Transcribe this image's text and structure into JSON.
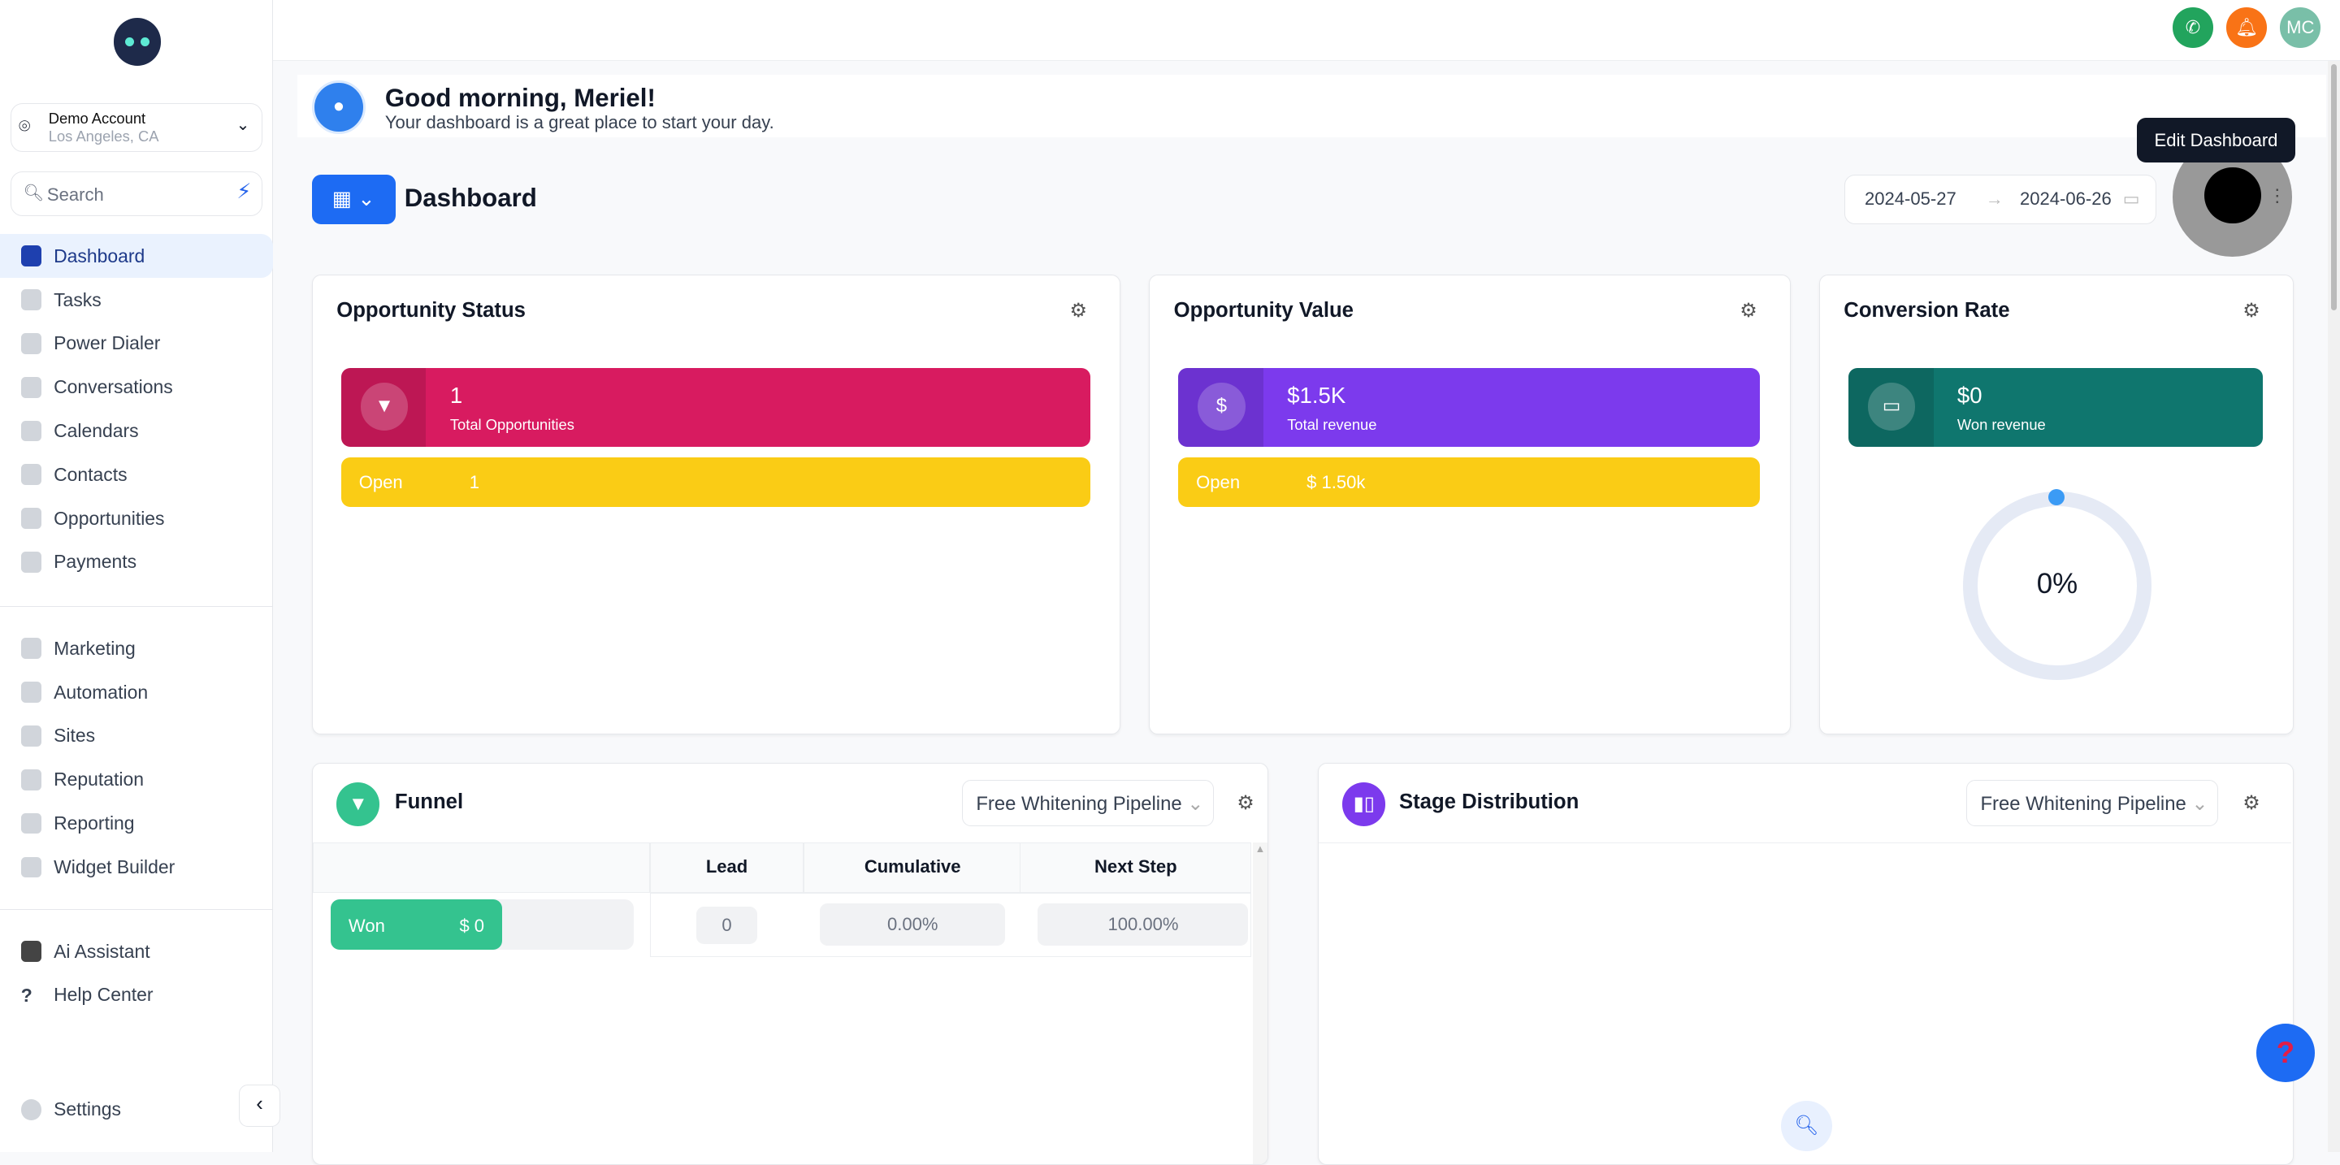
{
  "account": {
    "name": "Demo Account",
    "location": "Los Angeles, CA"
  },
  "search": {
    "placeholder": "Search"
  },
  "nav": {
    "main": [
      "Dashboard",
      "Tasks",
      "Power Dialer",
      "Conversations",
      "Calendars",
      "Contacts",
      "Opportunities",
      "Payments"
    ],
    "secondary": [
      "Marketing",
      "Automation",
      "Sites",
      "Reputation",
      "Reporting",
      "Widget Builder"
    ],
    "tertiary": [
      "Ai Assistant",
      "Help Center"
    ],
    "settings": "Settings"
  },
  "topbar": {
    "avatar_initials": "MC"
  },
  "greeting": {
    "title": "Good morning, Meriel!",
    "subtitle": "Your dashboard is a great place to start your day."
  },
  "dashboard": {
    "title": "Dashboard",
    "date_start": "2024-05-27",
    "date_end": "2024-06-26",
    "tooltip": "Edit Dashboard"
  },
  "opportunity_status": {
    "title": "Opportunity Status",
    "value": "1",
    "label": "Total Opportunities",
    "open_label": "Open",
    "open_value": "1"
  },
  "opportunity_value": {
    "title": "Opportunity Value",
    "value": "$1.5K",
    "label": "Total revenue",
    "open_label": "Open",
    "open_value": "$ 1.50k"
  },
  "conversion_rate": {
    "title": "Conversion Rate",
    "value": "$0",
    "label": "Won revenue",
    "percent": "0%"
  },
  "funnel": {
    "title": "Funnel",
    "pipeline": "Free Whitening Pipeline",
    "columns": [
      "Lead",
      "Cumulative",
      "Next Step"
    ],
    "rows": [
      {
        "stage": "Won",
        "amount": "$ 0",
        "lead": "0",
        "cumulative": "0.00%",
        "next_step": "100.00%"
      }
    ]
  },
  "stage_distribution": {
    "title": "Stage Distribution",
    "pipeline": "Free Whitening Pipeline"
  },
  "colors": {
    "primary": "#1d6bf3",
    "status": "#d81b60",
    "value": "#7c3aed",
    "conversion": "#0f766e",
    "open": "#facc15",
    "won": "#34c38f"
  }
}
